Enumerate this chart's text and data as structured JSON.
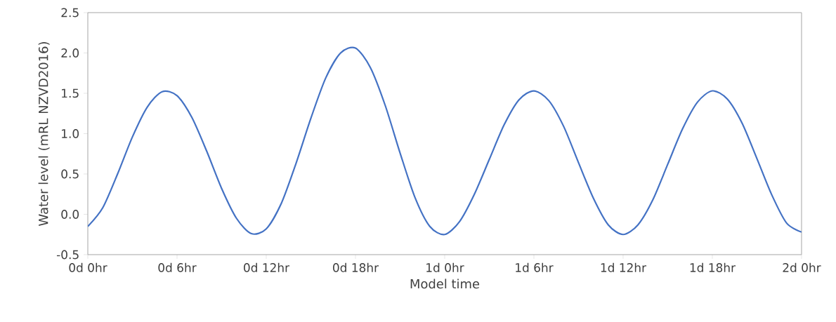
{
  "chart_data": {
    "type": "line",
    "xlabel": "Model time",
    "ylabel": "Water level (mRL NZVD2016)",
    "categories": [
      "0d 0hr",
      null,
      null,
      null,
      null,
      null,
      "0d 6hr",
      null,
      null,
      null,
      null,
      null,
      "0d 12hr",
      null,
      null,
      null,
      null,
      null,
      "0d 18hr",
      null,
      null,
      null,
      null,
      null,
      "1d 0hr",
      null,
      null,
      null,
      null,
      null,
      "1d 6hr",
      null,
      null,
      null,
      null,
      null,
      "1d 12hr",
      null,
      null,
      null,
      null,
      null,
      "1d 18hr",
      null,
      null,
      null,
      null,
      null,
      "2d 0hr"
    ],
    "series": [
      {
        "color": "#4472c4",
        "values": [
          -0.15,
          0.08,
          0.5,
          0.96,
          1.33,
          1.52,
          1.47,
          1.2,
          0.78,
          0.32,
          -0.05,
          -0.24,
          -0.18,
          0.13,
          0.63,
          1.19,
          1.69,
          2.0,
          2.06,
          1.82,
          1.35,
          0.76,
          0.21,
          -0.15,
          -0.25,
          -0.09,
          0.25,
          0.68,
          1.11,
          1.42,
          1.53,
          1.41,
          1.09,
          0.64,
          0.2,
          -0.13,
          -0.25,
          -0.13,
          0.18,
          0.62,
          1.06,
          1.39,
          1.53,
          1.43,
          1.13,
          0.69,
          0.24,
          -0.11,
          -0.22
        ]
      }
    ],
    "ylim": [
      -0.5,
      2.5
    ],
    "yticks": [
      {
        "value": -0.5,
        "label": "-0.5"
      },
      {
        "value": 0,
        "label": "0.0"
      },
      {
        "value": 0.5,
        "label": "0.5"
      },
      {
        "value": 1,
        "label": "1.0"
      },
      {
        "value": 1.5,
        "label": "1.5"
      },
      {
        "value": 2,
        "label": "2.0"
      },
      {
        "value": 2.5,
        "label": "2.5"
      }
    ],
    "grid": false,
    "marker": "none",
    "line_style": "solid"
  }
}
